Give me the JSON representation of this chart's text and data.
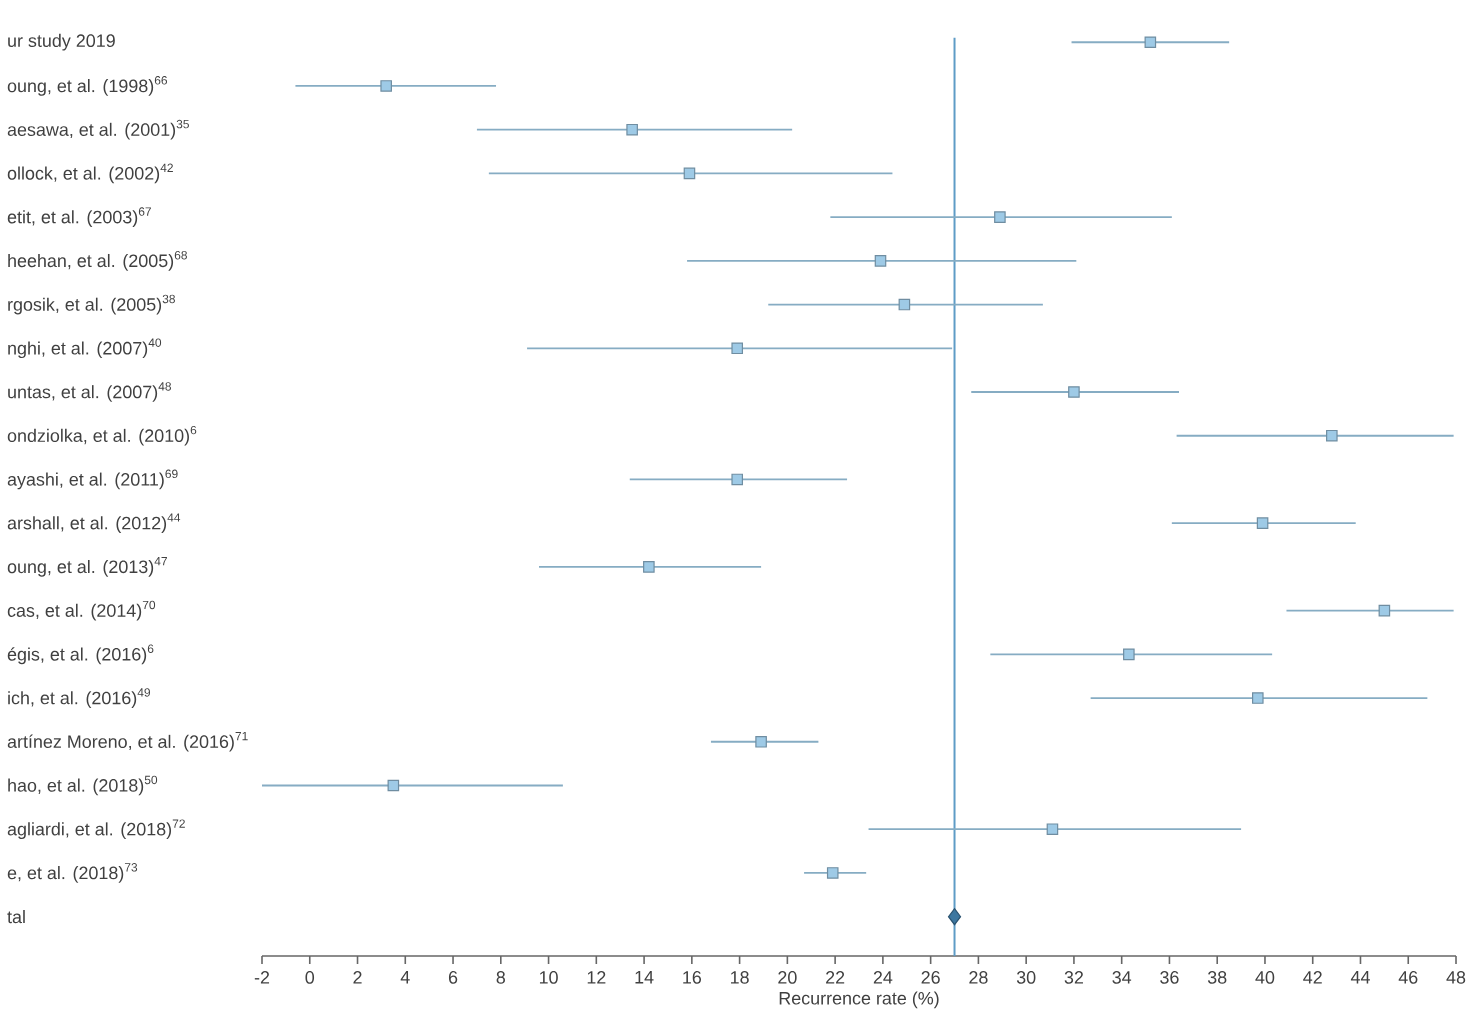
{
  "chart_data": {
    "type": "scatter",
    "orientation": "horizontal",
    "xlabel": "Recurrence rate (%)",
    "categories": [
      "ur study 2019",
      "oung, et al. (1998)$^{66}$",
      "aesawa, et al. (2001)$^{35}$",
      "ollock, et al. (2002)$^{42}$",
      "etit, et al. (2003)$^{67}$",
      "heehan, et al. (2005)$^{68}$",
      "rgosik, et al. (2005)$^{38}$",
      "nghi, et al. (2007)$^{40}$",
      "untas, et al. (2007)$^{48}$",
      "ondziolka, et al. (2010)$^{6}$",
      "ayashi, et al. (2011)$^{69}$",
      "arshall, et al. (2012)$^{44}$",
      "oung, et al. (2013)$^{47}$",
      "cas, et al. (2014)$^{70}$",
      "égis, et al. (2016)$^{6}$",
      "ich, et al. (2016)$^{49}$",
      "artínez Moreno, et al. (2016)$^{71}$",
      "hao, et al. (2018)$^{50}$",
      "agliardi, et al. (2018)$^{72}$",
      "e, et al. (2018)$^{73}$",
      "tal"
    ],
    "series": [
      {
        "color": "#9ecae6",
        "marker": "square",
        "values": [
          35.2,
          3.2,
          13.5,
          15.9,
          28.9,
          23.9,
          24.9,
          17.9,
          32.0,
          42.8,
          17.9,
          39.9,
          14.2,
          45.0,
          34.3,
          39.7,
          18.9,
          3.5,
          31.1,
          21.9,
          null
        ],
        "errors": [
          [
            31.9,
            38.5
          ],
          [
            -0.6,
            7.8
          ],
          [
            7.0,
            20.2
          ],
          [
            7.5,
            24.4
          ],
          [
            21.8,
            36.1
          ],
          [
            15.8,
            32.1
          ],
          [
            19.2,
            30.7
          ],
          [
            9.1,
            26.9
          ],
          [
            27.7,
            36.4
          ],
          [
            36.3,
            47.9
          ],
          [
            13.4,
            22.5
          ],
          [
            36.1,
            43.8
          ],
          [
            9.6,
            18.9
          ],
          [
            40.9,
            47.9
          ],
          [
            28.5,
            40.3
          ],
          [
            32.7,
            46.8
          ],
          [
            16.8,
            21.3
          ],
          [
            -2.0,
            10.6
          ],
          [
            23.4,
            39.0
          ],
          [
            20.7,
            23.3
          ],
          null
        ]
      },
      {
        "color": "#3d77a0",
        "marker": "diamond",
        "values": [
          null,
          null,
          null,
          null,
          null,
          null,
          null,
          null,
          null,
          null,
          null,
          null,
          null,
          null,
          null,
          null,
          null,
          null,
          null,
          null,
          27.0
        ]
      }
    ],
    "ref_lines": [
      {
        "axis": "x",
        "value": 27,
        "color": "#5e9cc6"
      }
    ],
    "xlim": [
      -2,
      48
    ],
    "xticks": [
      -2,
      0,
      2,
      4,
      6,
      8,
      10,
      12,
      14,
      16,
      18,
      20,
      22,
      24,
      26,
      28,
      30,
      32,
      34,
      36,
      38,
      40,
      42,
      44,
      46,
      48
    ],
    "grid": false
  }
}
